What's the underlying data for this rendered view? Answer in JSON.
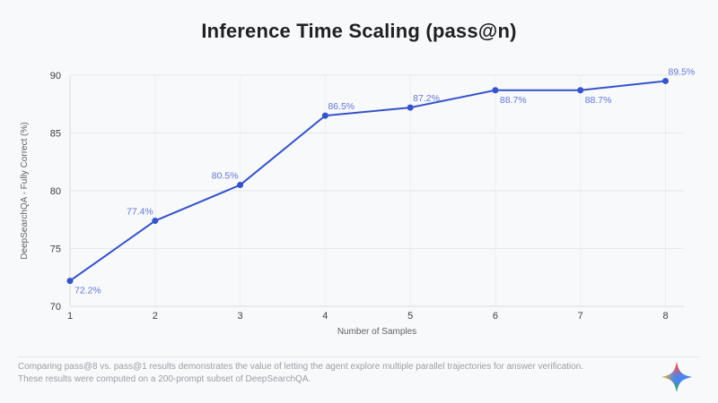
{
  "page": {
    "title": "Inference Time Scaling (pass@n)",
    "background": "#f8f9fa"
  },
  "chart_data": {
    "type": "line",
    "title": "Inference Time Scaling (pass@n)",
    "xlabel": "Number of Samples",
    "ylabel": "DeepSearchQA - Fully Correct (%)",
    "x": [
      1,
      2,
      3,
      4,
      5,
      6,
      7,
      8
    ],
    "xticks": [
      1,
      2,
      3,
      4,
      5,
      6,
      7,
      8
    ],
    "series": [
      {
        "name": "pass@n",
        "values": [
          72.2,
          77.4,
          80.5,
          86.5,
          87.2,
          88.7,
          88.7,
          89.5
        ]
      }
    ],
    "point_labels": [
      "72.2%",
      "77.4%",
      "80.5%",
      "86.5%",
      "87.2%",
      "88.7%",
      "88.7%",
      "89.5%"
    ],
    "label_positions": [
      "below-right",
      "above-left",
      "above-left",
      "above-right",
      "above-right",
      "below-right",
      "below-right",
      "above-right"
    ],
    "ylim": [
      70,
      90
    ],
    "yticks": [
      70,
      75,
      80,
      85,
      90
    ],
    "grid": true,
    "legend": "none",
    "colors": {
      "line": "#3553cb",
      "marker": "#3553cb",
      "point_label": "#6278d8",
      "tick_text": "#3c4043",
      "axis_title": "#5f6368",
      "grid_h": "#e6e8eb",
      "grid_v": "#edeff2",
      "axis_line": "#d8dadd"
    }
  },
  "footer": {
    "line1": "Comparing pass@8 vs. pass@1 results demonstrates the value of letting the agent explore multiple parallel trajectories for answer verification.",
    "line2": "These results were computed on a 200-prompt subset of DeepSearchQA.",
    "logo_icon": "gemini-sparkle-icon"
  }
}
